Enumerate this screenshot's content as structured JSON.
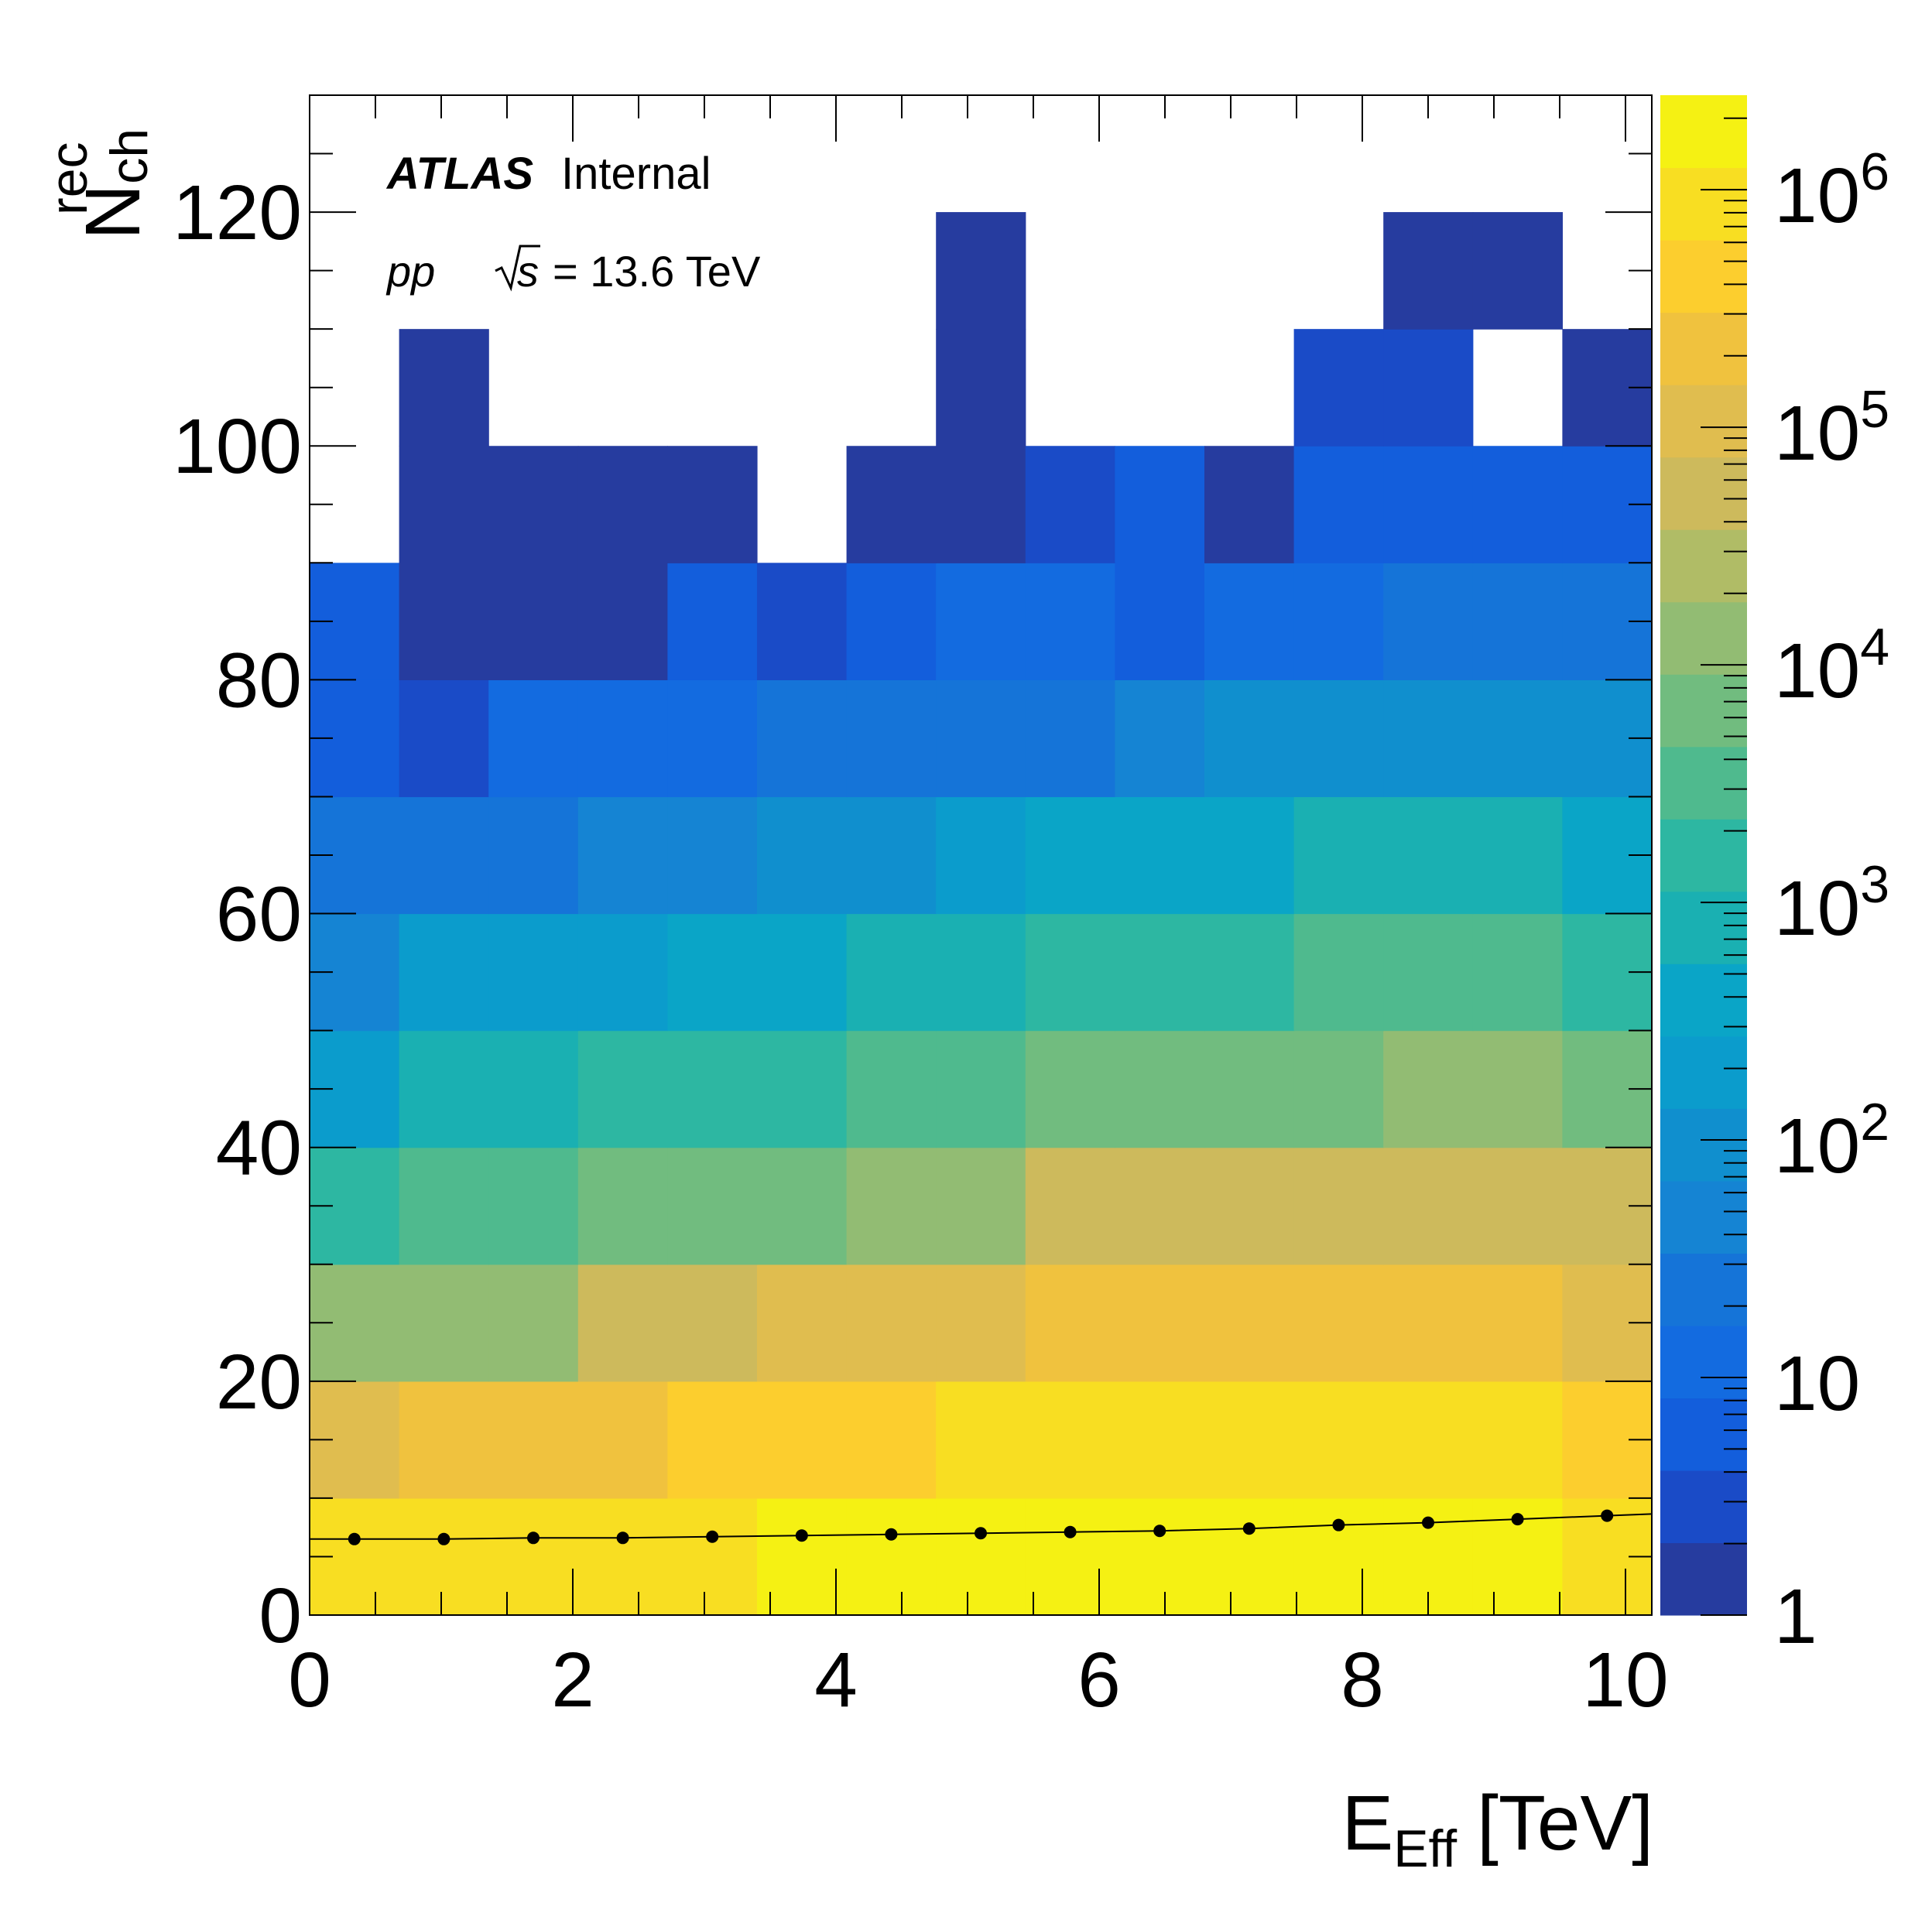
{
  "chart_data": {
    "type": "heatmap",
    "x_label": {
      "main": "E",
      "sub": "Eff",
      "unit": "[TeV]"
    },
    "y_label": {
      "main": "N",
      "sub": "ch",
      "sup": "rec"
    },
    "x_range": [
      0,
      10.2
    ],
    "y_range": [
      0,
      130
    ],
    "x_ticks": [
      "0",
      "2",
      "4",
      "6",
      "8",
      "10"
    ],
    "x_tick_values": [
      0,
      2,
      4,
      6,
      8,
      10
    ],
    "y_ticks": [
      "0",
      "20",
      "40",
      "60",
      "80",
      "100",
      "120"
    ],
    "y_tick_values": [
      0,
      20,
      40,
      60,
      80,
      100,
      120
    ],
    "x_bin_edges": [
      0,
      0.68,
      1.36,
      2.04,
      2.72,
      3.4,
      4.08,
      4.76,
      5.44,
      6.12,
      6.8,
      7.48,
      8.16,
      8.84,
      9.52,
      10.2
    ],
    "y_bin_edges": [
      0,
      10,
      20,
      30,
      40,
      50,
      60,
      70,
      80,
      90,
      100,
      110,
      120
    ],
    "z_scale": "log",
    "z_range": [
      1,
      2500000
    ],
    "z_ticks": [
      {
        "value": 1,
        "base": "1",
        "exp": ""
      },
      {
        "value": 10,
        "base": "10",
        "exp": ""
      },
      {
        "value": 100,
        "base": "10",
        "exp": "2"
      },
      {
        "value": 1000,
        "base": "10",
        "exp": "3"
      },
      {
        "value": 10000,
        "base": "10",
        "exp": "4"
      },
      {
        "value": 100000,
        "base": "10",
        "exp": "5"
      },
      {
        "value": 1000000,
        "base": "10",
        "exp": "6"
      }
    ],
    "z_values": [
      [
        700000,
        700000,
        1200000,
        1200000,
        1200000,
        2200000,
        2200000,
        2200000,
        2200000,
        2200000,
        2200000,
        2200000,
        2200000,
        2200000,
        1200000
      ],
      [
        80000,
        200000,
        200000,
        200000,
        400000,
        400000,
        400000,
        700000,
        700000,
        700000,
        700000,
        700000,
        700000,
        700000,
        400000
      ],
      [
        15000,
        15000,
        15000,
        40000,
        40000,
        80000,
        80000,
        80000,
        200000,
        200000,
        200000,
        200000,
        200000,
        200000,
        80000
      ],
      [
        1500,
        4000,
        4000,
        8000,
        8000,
        8000,
        15000,
        15000,
        40000,
        40000,
        40000,
        40000,
        40000,
        40000,
        40000
      ],
      [
        150,
        600,
        600,
        1500,
        1500,
        1500,
        4000,
        4000,
        8000,
        8000,
        8000,
        8000,
        15000,
        15000,
        8000
      ],
      [
        40,
        150,
        150,
        150,
        300,
        300,
        600,
        600,
        1500,
        1500,
        1500,
        4000,
        4000,
        4000,
        1500
      ],
      [
        30,
        30,
        30,
        40,
        40,
        80,
        80,
        150,
        300,
        300,
        300,
        600,
        600,
        600,
        300
      ],
      [
        5,
        3,
        15,
        15,
        15,
        30,
        30,
        30,
        30,
        40,
        80,
        80,
        80,
        80,
        80
      ],
      [
        6,
        1,
        1,
        1,
        6,
        3,
        8,
        12,
        12,
        8,
        12,
        12,
        20,
        20,
        20
      ],
      [
        null,
        1,
        1,
        1,
        1,
        null,
        1,
        1,
        3,
        6,
        1,
        6,
        6,
        6,
        6
      ],
      [
        null,
        1,
        null,
        null,
        null,
        null,
        null,
        1,
        null,
        null,
        null,
        3,
        3,
        null,
        1
      ],
      [
        null,
        null,
        null,
        null,
        null,
        null,
        null,
        1,
        null,
        null,
        null,
        null,
        1,
        1,
        null
      ]
    ],
    "profile": {
      "x": [
        0.34,
        1.02,
        1.7,
        2.38,
        3.06,
        3.74,
        4.42,
        5.1,
        5.78,
        6.46,
        7.14,
        7.82,
        8.5,
        9.18,
        9.86
      ],
      "y": [
        6.5,
        6.5,
        6.6,
        6.6,
        6.7,
        6.8,
        6.9,
        7.0,
        7.1,
        7.2,
        7.4,
        7.7,
        7.9,
        8.2,
        8.5
      ]
    },
    "colorbar_colors": [
      "#263c9f",
      "#1a4bc7",
      "#135edc",
      "#136be0",
      "#1574d8",
      "#1584d3",
      "#108fce",
      "#0b9ccc",
      "#0aa5c7",
      "#1ab0b2",
      "#2db7a2",
      "#4fba8e",
      "#71bc7f",
      "#92bc73",
      "#b0bc66",
      "#cdba5c",
      "#e0bd4f",
      "#f0c23e",
      "#fcce2e",
      "#f8de22",
      "#f5f113"
    ]
  },
  "annotations": {
    "experiment": "ATLAS",
    "status": "Internal",
    "process": "pp",
    "energy_symbol": "s",
    "energy_text": "= 13.6 TeV"
  }
}
